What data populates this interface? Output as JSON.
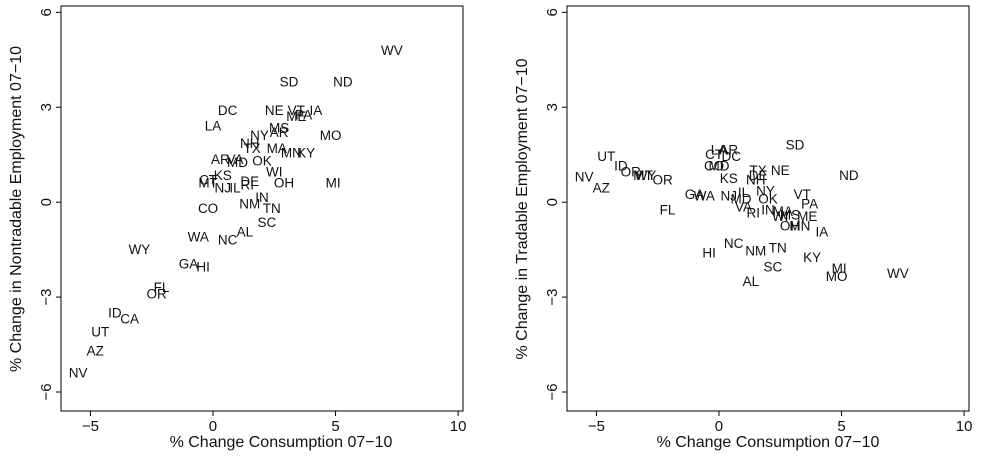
{
  "chart_data": [
    {
      "type": "scatter",
      "title": "",
      "xlabel": "% Change Consumption 07−10",
      "ylabel": "% Change in Nontradable Employment 07−10",
      "xlim": [
        -6.2,
        10.2
      ],
      "ylim": [
        -6.6,
        6.2
      ],
      "xticks": [
        -5,
        0,
        5,
        10
      ],
      "xtick_labels": [
        "−5",
        "0",
        "5",
        "10"
      ],
      "yticks": [
        -6,
        -3,
        0,
        3,
        6
      ],
      "ytick_labels": [
        "−6",
        "−3",
        "0",
        "3",
        "6"
      ],
      "grid": false,
      "points": [
        {
          "label": "WV",
          "x": 7.3,
          "y": 4.8
        },
        {
          "label": "SD",
          "x": 3.1,
          "y": 3.8
        },
        {
          "label": "ND",
          "x": 5.3,
          "y": 3.8
        },
        {
          "label": "DC",
          "x": 0.6,
          "y": 2.9
        },
        {
          "label": "NE",
          "x": 2.5,
          "y": 2.9
        },
        {
          "label": "VT",
          "x": 3.4,
          "y": 2.9
        },
        {
          "label": "IA",
          "x": 4.2,
          "y": 2.9
        },
        {
          "label": "PA",
          "x": 3.7,
          "y": 2.75
        },
        {
          "label": "ME",
          "x": 3.4,
          "y": 2.7
        },
        {
          "label": "LA",
          "x": 0.0,
          "y": 2.4
        },
        {
          "label": "MS",
          "x": 2.7,
          "y": 2.35
        },
        {
          "label": "NY",
          "x": 1.9,
          "y": 2.1
        },
        {
          "label": "AR",
          "x": 2.7,
          "y": 2.2
        },
        {
          "label": "MO",
          "x": 4.8,
          "y": 2.1
        },
        {
          "label": "NH",
          "x": 1.5,
          "y": 1.85
        },
        {
          "label": "TX",
          "x": 1.6,
          "y": 1.7
        },
        {
          "label": "MA",
          "x": 2.6,
          "y": 1.7
        },
        {
          "label": "MN",
          "x": 3.2,
          "y": 1.55
        },
        {
          "label": "KY",
          "x": 3.8,
          "y": 1.55
        },
        {
          "label": "AR",
          "x": 0.3,
          "y": 1.35
        },
        {
          "label": "VA",
          "x": 0.9,
          "y": 1.35
        },
        {
          "label": "MD",
          "x": 1.0,
          "y": 1.25
        },
        {
          "label": "OK",
          "x": 2.0,
          "y": 1.3
        },
        {
          "label": "KS",
          "x": 0.4,
          "y": 0.85
        },
        {
          "label": "WI",
          "x": 2.5,
          "y": 0.95
        },
        {
          "label": "CT",
          "x": -0.2,
          "y": 0.7
        },
        {
          "label": "MT",
          "x": -0.2,
          "y": 0.6
        },
        {
          "label": "NJ",
          "x": 0.4,
          "y": 0.45
        },
        {
          "label": "IL",
          "x": 0.9,
          "y": 0.45
        },
        {
          "label": "RI",
          "x": 1.4,
          "y": 0.55
        },
        {
          "label": "DE",
          "x": 1.5,
          "y": 0.65
        },
        {
          "label": "OH",
          "x": 2.9,
          "y": 0.6
        },
        {
          "label": "MI",
          "x": 4.9,
          "y": 0.6
        },
        {
          "label": "IN",
          "x": 2.0,
          "y": 0.15
        },
        {
          "label": "CO",
          "x": -0.2,
          "y": -0.2
        },
        {
          "label": "NM",
          "x": 1.5,
          "y": -0.05
        },
        {
          "label": "TN",
          "x": 2.4,
          "y": -0.2
        },
        {
          "label": "SC",
          "x": 2.2,
          "y": -0.65
        },
        {
          "label": "AL",
          "x": 1.3,
          "y": -0.95
        },
        {
          "label": "WA",
          "x": -0.6,
          "y": -1.1
        },
        {
          "label": "NC",
          "x": 0.6,
          "y": -1.2
        },
        {
          "label": "WY",
          "x": -3.0,
          "y": -1.5
        },
        {
          "label": "GA",
          "x": -1.0,
          "y": -1.95
        },
        {
          "label": "HI",
          "x": -0.4,
          "y": -2.05
        },
        {
          "label": "FL",
          "x": -2.1,
          "y": -2.7
        },
        {
          "label": "OR",
          "x": -2.3,
          "y": -2.9
        },
        {
          "label": "ID",
          "x": -4.0,
          "y": -3.5
        },
        {
          "label": "CA",
          "x": -3.4,
          "y": -3.7
        },
        {
          "label": "UT",
          "x": -4.6,
          "y": -4.1
        },
        {
          "label": "AZ",
          "x": -4.8,
          "y": -4.7
        },
        {
          "label": "NV",
          "x": -5.5,
          "y": -5.4
        }
      ]
    },
    {
      "type": "scatter",
      "title": "",
      "xlabel": "% Change Consumption 07−10",
      "ylabel": "% Change in Tradable Employment 07−10",
      "xlim": [
        -6.2,
        10.2
      ],
      "ylim": [
        -6.6,
        6.2
      ],
      "xticks": [
        -5,
        0,
        5,
        10
      ],
      "xtick_labels": [
        "−5",
        "0",
        "5",
        "10"
      ],
      "yticks": [
        -6,
        -3,
        0,
        3,
        6
      ],
      "ytick_labels": [
        "−6",
        "−3",
        "0",
        "3",
        "6"
      ],
      "grid": false,
      "points": [
        {
          "label": "SD",
          "x": 3.1,
          "y": 1.8
        },
        {
          "label": "UT",
          "x": -4.6,
          "y": 1.45
        },
        {
          "label": "LA",
          "x": 0.0,
          "y": 1.65
        },
        {
          "label": "AR",
          "x": 0.4,
          "y": 1.65
        },
        {
          "label": "CT",
          "x": -0.2,
          "y": 1.5
        },
        {
          "label": "DC",
          "x": 0.5,
          "y": 1.45
        },
        {
          "label": "ID",
          "x": -4.0,
          "y": 1.15
        },
        {
          "label": "OR",
          "x": -3.6,
          "y": 0.95
        },
        {
          "label": "MT",
          "x": -3.1,
          "y": 0.85
        },
        {
          "label": "WY",
          "x": -3.0,
          "y": 0.85
        },
        {
          "label": "NV",
          "x": -5.5,
          "y": 0.8
        },
        {
          "label": "OR",
          "x": -2.3,
          "y": 0.7
        },
        {
          "label": "AZ",
          "x": -4.8,
          "y": 0.45
        },
        {
          "label": "CO",
          "x": -0.2,
          "y": 1.15
        },
        {
          "label": "MD",
          "x": 0.0,
          "y": 1.15
        },
        {
          "label": "TX",
          "x": 1.6,
          "y": 1.0
        },
        {
          "label": "NE",
          "x": 2.5,
          "y": 1.0
        },
        {
          "label": "DE",
          "x": 1.6,
          "y": 0.85
        },
        {
          "label": "NH",
          "x": 1.5,
          "y": 0.7
        },
        {
          "label": "KS",
          "x": 0.4,
          "y": 0.75
        },
        {
          "label": "ND",
          "x": 5.3,
          "y": 0.85
        },
        {
          "label": "NY",
          "x": 1.9,
          "y": 0.35
        },
        {
          "label": "IL",
          "x": 1.0,
          "y": 0.3
        },
        {
          "label": "GA",
          "x": -1.0,
          "y": 0.25
        },
        {
          "label": "WA",
          "x": -0.6,
          "y": 0.2
        },
        {
          "label": "NJ",
          "x": 0.4,
          "y": 0.2
        },
        {
          "label": "MD",
          "x": 0.9,
          "y": 0.1
        },
        {
          "label": "OK",
          "x": 2.0,
          "y": 0.1
        },
        {
          "label": "VT",
          "x": 3.4,
          "y": 0.25
        },
        {
          "label": "PA",
          "x": 3.7,
          "y": -0.05
        },
        {
          "label": "VA",
          "x": 1.0,
          "y": -0.15
        },
        {
          "label": "FL",
          "x": -2.1,
          "y": -0.25
        },
        {
          "label": "RI",
          "x": 1.4,
          "y": -0.35
        },
        {
          "label": "IN",
          "x": 2.0,
          "y": -0.25
        },
        {
          "label": "MA",
          "x": 2.6,
          "y": -0.3
        },
        {
          "label": "WI",
          "x": 2.5,
          "y": -0.45
        },
        {
          "label": "MS",
          "x": 2.9,
          "y": -0.4
        },
        {
          "label": "ME",
          "x": 3.6,
          "y": -0.45
        },
        {
          "label": "OH",
          "x": 2.9,
          "y": -0.75
        },
        {
          "label": "MN",
          "x": 3.3,
          "y": -0.75
        },
        {
          "label": "IA",
          "x": 4.2,
          "y": -0.95
        },
        {
          "label": "NC",
          "x": 0.6,
          "y": -1.3
        },
        {
          "label": "TN",
          "x": 2.4,
          "y": -1.45
        },
        {
          "label": "HI",
          "x": -0.4,
          "y": -1.6
        },
        {
          "label": "NM",
          "x": 1.5,
          "y": -1.55
        },
        {
          "label": "KY",
          "x": 3.8,
          "y": -1.75
        },
        {
          "label": "SC",
          "x": 2.2,
          "y": -2.05
        },
        {
          "label": "MI",
          "x": 4.9,
          "y": -2.1
        },
        {
          "label": "WV",
          "x": 7.3,
          "y": -2.25
        },
        {
          "label": "MO",
          "x": 4.8,
          "y": -2.35
        },
        {
          "label": "AL",
          "x": 1.3,
          "y": -2.5
        }
      ]
    }
  ]
}
